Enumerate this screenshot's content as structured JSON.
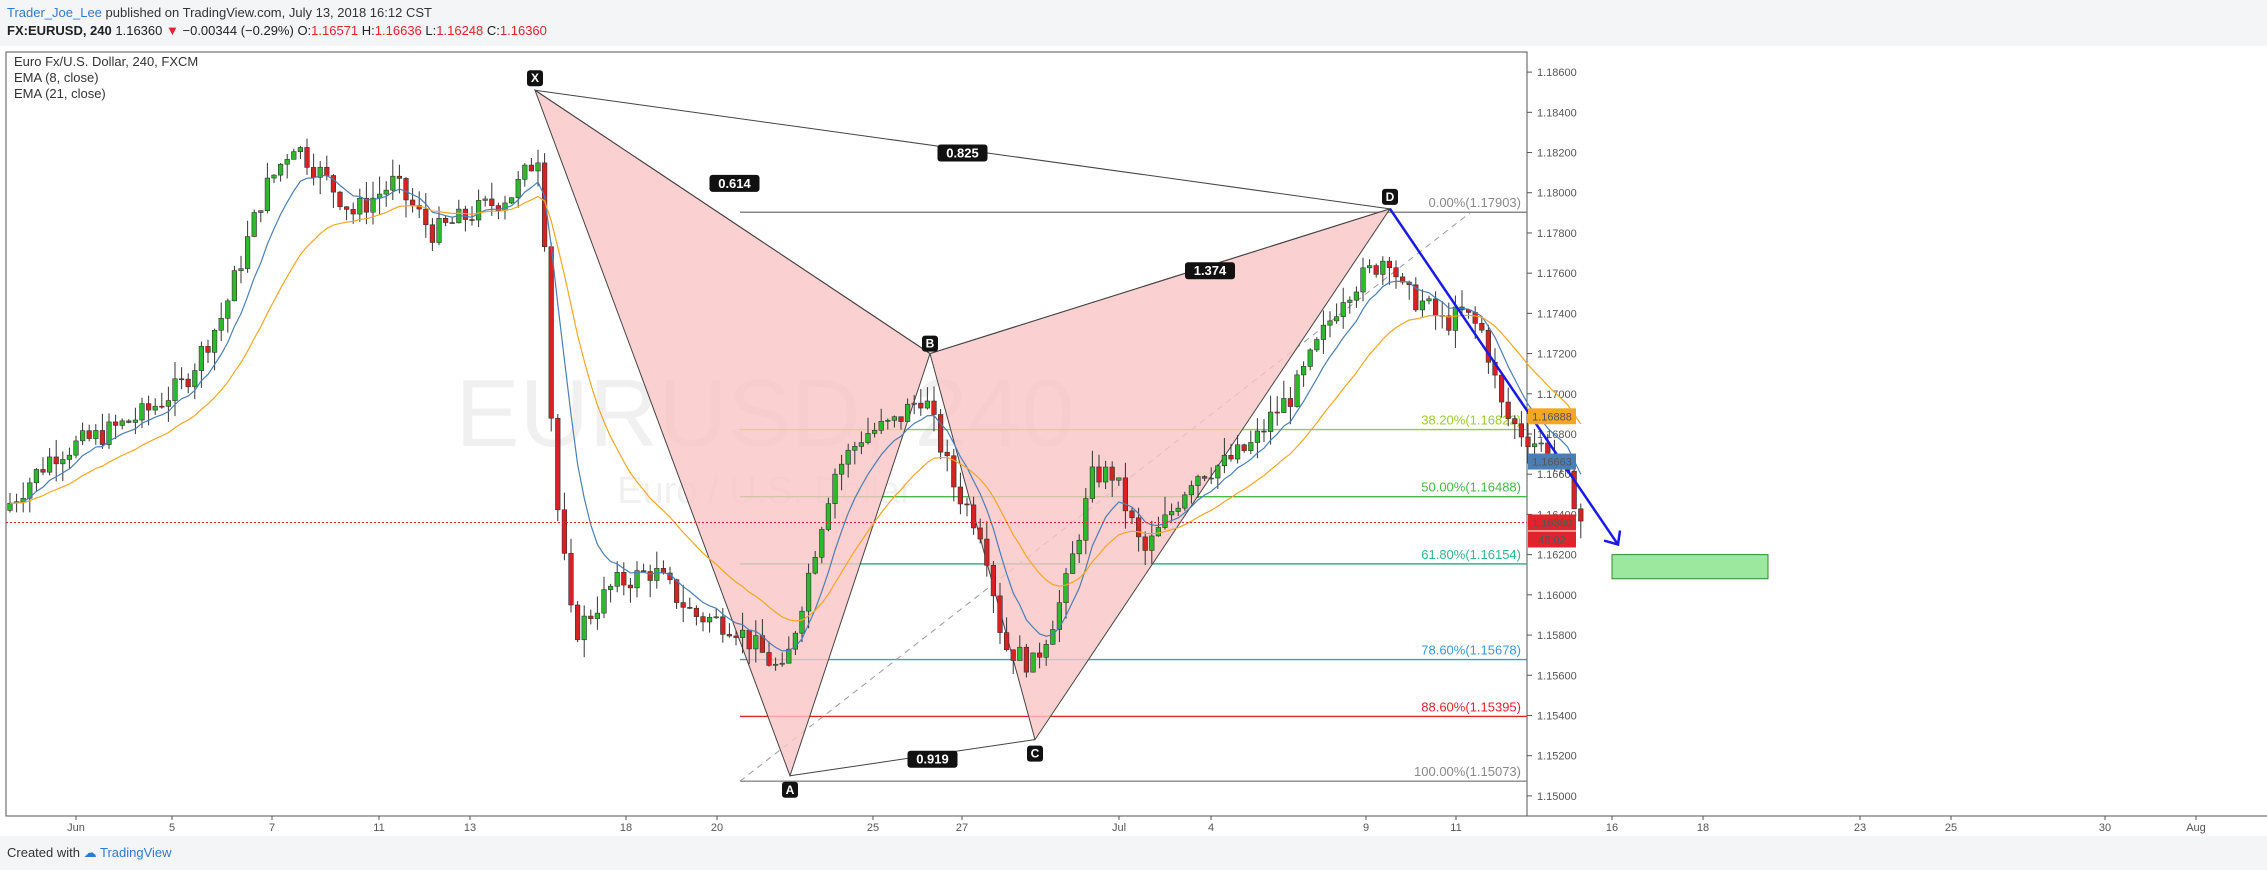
{
  "header": {
    "author": "Trader_Joe_Lee",
    "published": " published on TradingView.com, July 13, 2018 16:12 CST",
    "symbol": "FX:EURUSD, 240",
    "last": "1.16360",
    "change_arrow": "▼",
    "change": "−0.00344 (−0.29%)",
    "o_label": "O:",
    "o": "1.16571",
    "h_label": "H:",
    "h": "1.16636",
    "l_label": "L:",
    "l": "1.16248",
    "c_label": "C:",
    "c": "1.16360"
  },
  "footer": {
    "created": "Created with",
    "brand": "TradingView"
  },
  "colors": {
    "up": "#2eb82e",
    "down": "#d62222",
    "ema8": "#4a7fb5",
    "ema21": "#f5a623",
    "pattern_fill": "#f9c4c4",
    "arrow": "#1a1ae6",
    "target_box": "#9ce89c"
  },
  "chart_data": {
    "type": "candlestick",
    "title": "Euro Fx/U.S. Dollar, 240, FXCM",
    "watermark": "EURUSD, 240",
    "watermark_sub": "Euro / U.S. Dollar",
    "legend": [
      "Euro Fx/U.S. Dollar, 240, FXCM",
      "EMA (8, close)",
      "EMA (21, close)"
    ],
    "ylim": [
      1.149,
      1.187
    ],
    "y_ticks": [
      "1.18600",
      "1.18400",
      "1.18200",
      "1.18000",
      "1.17800",
      "1.17600",
      "1.17400",
      "1.17200",
      "1.17000",
      "1.16800",
      "1.16600",
      "1.16400",
      "1.16200",
      "1.16000",
      "1.15800",
      "1.15600",
      "1.15400",
      "1.15200",
      "1.15000"
    ],
    "x_ticks": [
      "Jun",
      "5",
      "7",
      "11",
      "13",
      "18",
      "20",
      "25",
      "27",
      "Jul",
      "4",
      "9",
      "11",
      "16",
      "18",
      "23",
      "25",
      "30",
      "Aug"
    ],
    "price_tags": [
      {
        "value": "1.16888",
        "color": "#f5a623"
      },
      {
        "value": "1.16663",
        "color": "#4a7fb5"
      },
      {
        "value": "1.16360",
        "color": "#e0242c"
      },
      {
        "value": "48:02",
        "color": "#e0242c"
      }
    ],
    "pattern_points": [
      {
        "label": "X",
        "price": 1.1851
      },
      {
        "label": "A",
        "price": 1.151
      },
      {
        "label": "B",
        "price": 1.172
      },
      {
        "label": "C",
        "price": 1.1528
      },
      {
        "label": "D",
        "price": 1.1792
      }
    ],
    "pattern_ratios": [
      "0.614",
      "1.374",
      "0.919",
      "0.825"
    ],
    "fib_levels": [
      {
        "label": "0.00%(1.17903)",
        "price": 1.17903,
        "color": "#888888"
      },
      {
        "label": "38.20%(1.16822)",
        "price": 1.16822,
        "color": "#9ccc2c"
      },
      {
        "label": "50.00%(1.16488)",
        "price": 1.16488,
        "color": "#45b845"
      },
      {
        "label": "61.80%(1.16154)",
        "price": 1.16154,
        "color": "#2eb88a"
      },
      {
        "label": "78.60%(1.15678)",
        "price": 1.15678,
        "color": "#3a9ad6"
      },
      {
        "label": "88.60%(1.15395)",
        "price": 1.15395,
        "color": "#e0242c"
      },
      {
        "label": "100.00%(1.15073)",
        "price": 1.15073,
        "color": "#888888"
      }
    ],
    "target_zone": [
      1.1608,
      1.162
    ],
    "current_price": 1.1636
  }
}
